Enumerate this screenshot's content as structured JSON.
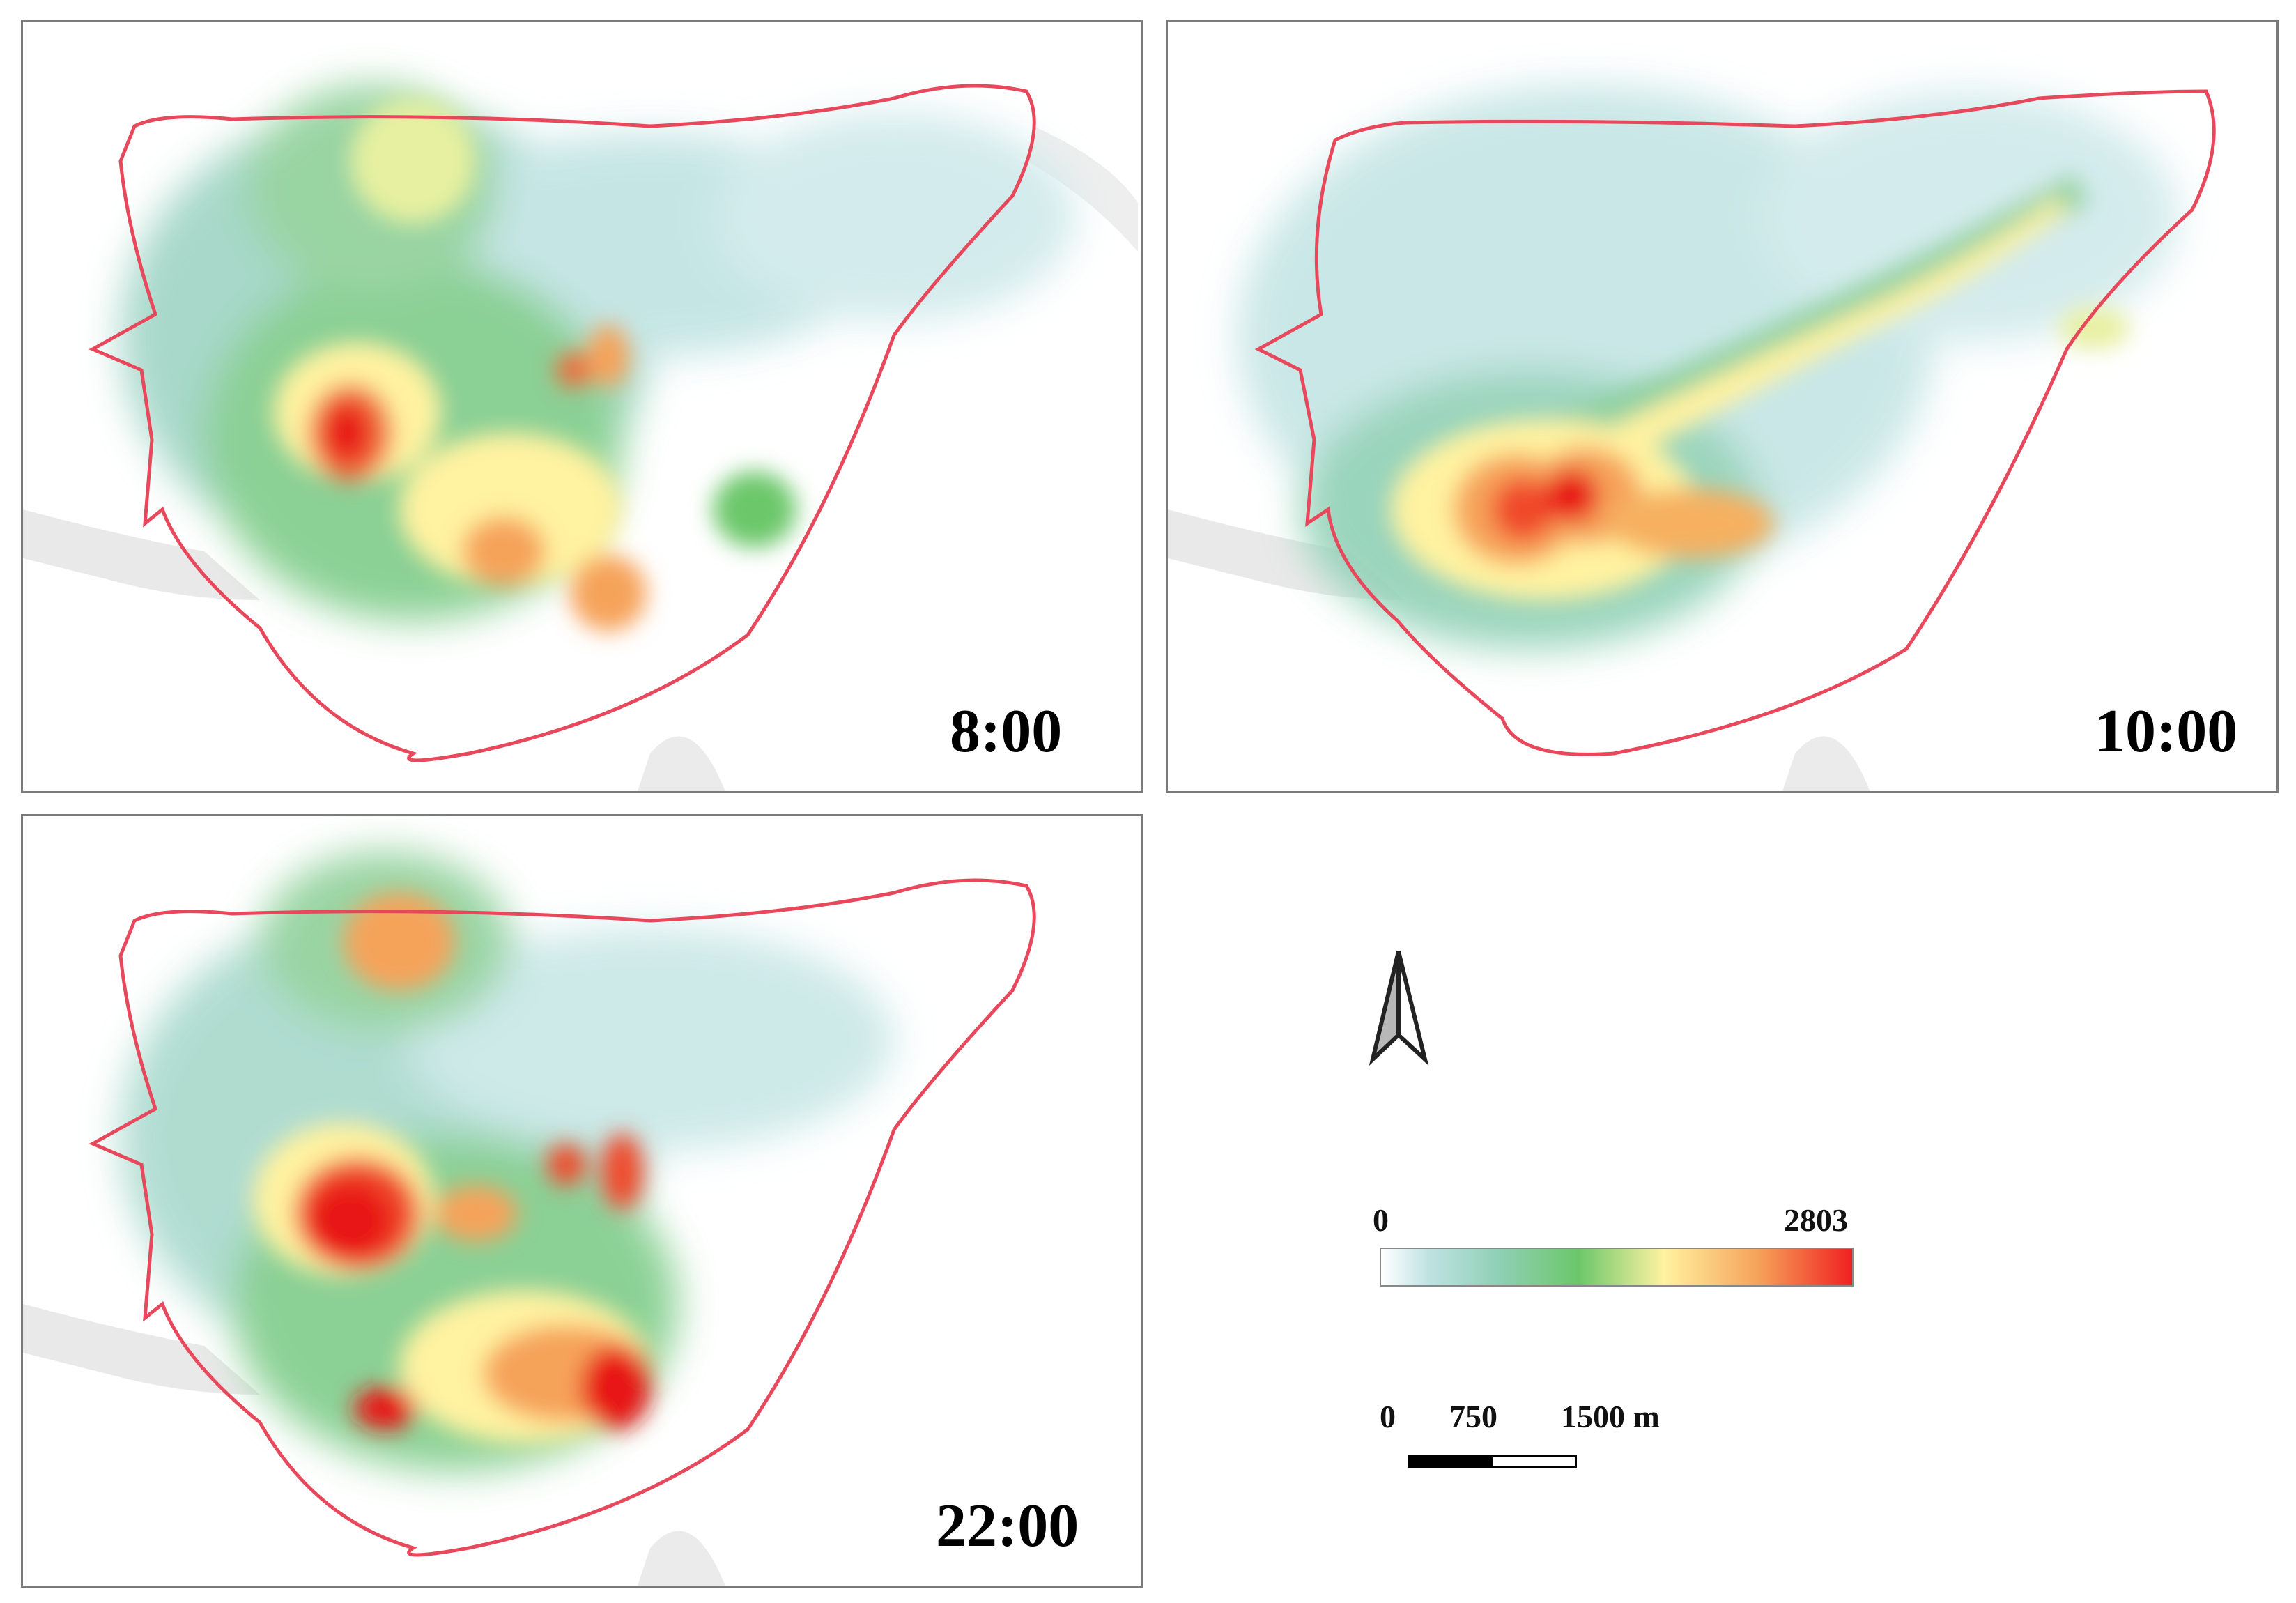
{
  "panels": [
    {
      "id": "panel-0800",
      "time": "8:00"
    },
    {
      "id": "panel-1000",
      "time": "10:00"
    },
    {
      "id": "panel-2200",
      "time": "22:00"
    }
  ],
  "legend": {
    "colorbar_min": "0",
    "colorbar_max": "2803",
    "colors": [
      "#ffffff",
      "#bfe3e2",
      "#8fd0b5",
      "#6cc76a",
      "#fff2a0",
      "#f6a35a",
      "#f02020"
    ],
    "scale_labels": [
      "0",
      "750",
      "1500 m"
    ]
  },
  "styles": {
    "boundary_color": "#e8485c",
    "frame_color": "#7a7a7a"
  }
}
